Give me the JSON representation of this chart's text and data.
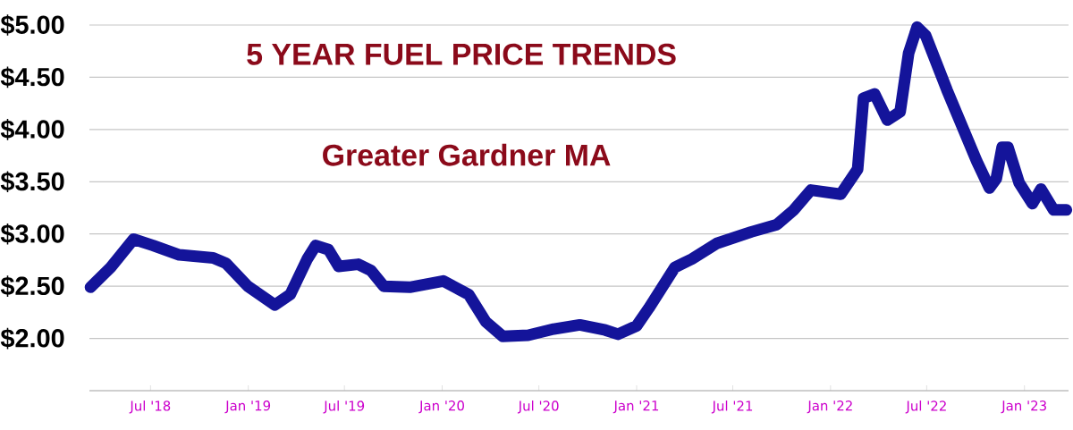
{
  "chart_data": {
    "type": "line",
    "title": "5 YEAR FUEL PRICE TRENDS",
    "subtitle": "Greater Gardner MA",
    "x": [
      "2018-03-10",
      "2018-04-17",
      "2018-05-30",
      "2018-07-06",
      "2018-08-24",
      "2018-10-27",
      "2018-11-20",
      "2018-12-31",
      "2019-02-20",
      "2019-03-21",
      "2019-04-22",
      "2019-05-08",
      "2019-06-01",
      "2019-06-20",
      "2019-07-27",
      "2019-08-20",
      "2019-09-13",
      "2019-11-01",
      "2020-01-03",
      "2020-02-20",
      "2020-03-23",
      "2020-04-24",
      "2020-06-11",
      "2020-07-29",
      "2020-09-16",
      "2020-11-03",
      "2020-11-27",
      "2021-01-01",
      "2021-01-24",
      "2021-03-14",
      "2021-04-15",
      "2021-06-01",
      "2021-08-05",
      "2021-09-22",
      "2021-10-24",
      "2021-11-25",
      "2022-01-20",
      "2022-02-21",
      "2022-03-04",
      "2022-03-25",
      "2022-04-18",
      "2022-05-12",
      "2022-05-28",
      "2022-06-13",
      "2022-06-29",
      "2022-08-08",
      "2022-10-03",
      "2022-10-27",
      "2022-11-09",
      "2022-11-20",
      "2022-12-01",
      "2022-12-22",
      "2023-01-16",
      "2023-02-01",
      "2023-02-25",
      "2023-03-21"
    ],
    "series": [
      {
        "color": "#14149a",
        "values": [
          2.49,
          2.68,
          2.95,
          2.89,
          2.8,
          2.77,
          2.72,
          2.5,
          2.32,
          2.42,
          2.76,
          2.89,
          2.85,
          2.69,
          2.71,
          2.65,
          2.5,
          2.49,
          2.55,
          2.42,
          2.16,
          2.02,
          2.03,
          2.09,
          2.13,
          2.08,
          2.04,
          2.12,
          2.29,
          2.68,
          2.76,
          2.91,
          3.02,
          3.09,
          3.23,
          3.42,
          3.38,
          3.62,
          4.3,
          4.34,
          4.09,
          4.17,
          4.73,
          4.98,
          4.9,
          4.38,
          3.7,
          3.44,
          3.53,
          3.83,
          3.83,
          3.49,
          3.29,
          3.43,
          3.23,
          3.23
        ]
      }
    ],
    "xlim": [
      "2018-03-08",
      "2023-03-25"
    ],
    "xticks": [
      {
        "value": "2018-07-01",
        "label": "Jul '18"
      },
      {
        "value": "2019-01-01",
        "label": "Jan '19"
      },
      {
        "value": "2019-07-01",
        "label": "Jul '19"
      },
      {
        "value": "2020-01-01",
        "label": "Jan '20"
      },
      {
        "value": "2020-07-01",
        "label": "Jul '20"
      },
      {
        "value": "2021-01-01",
        "label": "Jan '21"
      },
      {
        "value": "2021-07-01",
        "label": "Jul '21"
      },
      {
        "value": "2022-01-01",
        "label": "Jan '22"
      },
      {
        "value": "2022-07-01",
        "label": "Jul '22"
      },
      {
        "value": "2023-01-01",
        "label": "Jan '23"
      }
    ],
    "ylim": [
      1.5,
      5.0
    ],
    "yticks": [
      {
        "value": 1.5,
        "label": null
      },
      {
        "value": 2.0,
        "label": "$2.00"
      },
      {
        "value": 2.5,
        "label": "$2.50"
      },
      {
        "value": 3.0,
        "label": "$3.00"
      },
      {
        "value": 3.5,
        "label": "$3.50"
      },
      {
        "value": 4.0,
        "label": "$4.00"
      },
      {
        "value": 4.5,
        "label": "$4.50"
      },
      {
        "value": 5.0,
        "label": "$5.00"
      }
    ],
    "grid": "y",
    "marker": "none",
    "line_style": "solid"
  }
}
